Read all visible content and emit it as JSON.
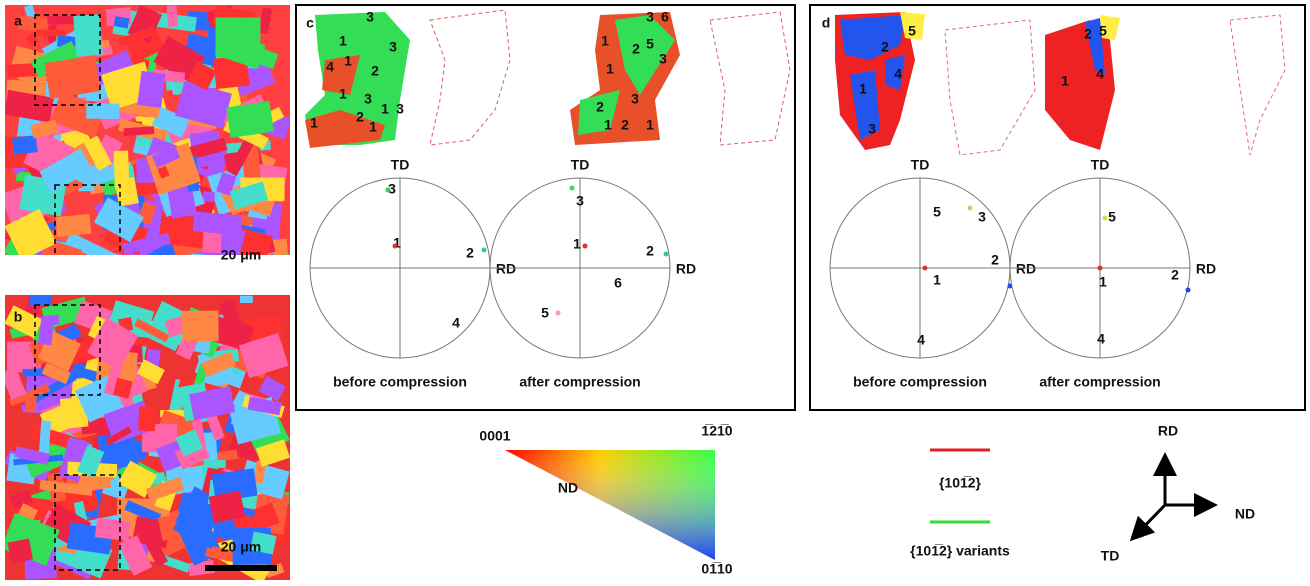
{
  "panel_a": {
    "label": "a",
    "scale": "20 μm"
  },
  "panel_b": {
    "label": "b",
    "scale": "20 μm"
  },
  "panel_c": {
    "label": "c",
    "map_labels_before": [
      "3",
      "1",
      "3",
      "4",
      "1",
      "2",
      "1",
      "3",
      "1",
      "3",
      "2",
      "1",
      "1"
    ],
    "map_labels_after": [
      "3",
      "6",
      "1",
      "2",
      "5",
      "3",
      "1",
      "3",
      "2",
      "1",
      "2",
      "1"
    ],
    "pole_before": {
      "td": "TD",
      "rd": "RD",
      "variants": [
        "1",
        "2",
        "3",
        "4"
      ],
      "caption": "before compression"
    },
    "pole_after": {
      "td": "TD",
      "rd": "RD",
      "variants": [
        "1",
        "2",
        "3",
        "5",
        "6"
      ],
      "caption": "after compression"
    }
  },
  "panel_d": {
    "label": "d",
    "map_labels_before": [
      "5",
      "2",
      "4",
      "1",
      "3"
    ],
    "map_labels_after": [
      "2",
      "5",
      "1",
      "4"
    ],
    "pole_before": {
      "td": "TD",
      "rd": "RD",
      "variants": [
        "1",
        "2",
        "3",
        "4",
        "5"
      ],
      "caption": "before compression"
    },
    "pole_after": {
      "td": "TD",
      "rd": "RD",
      "variants": [
        "1",
        "2",
        "4",
        "5"
      ],
      "caption": "after compression"
    }
  },
  "color_key": {
    "top_left": "0001",
    "top_right": "1̅21̅0",
    "bottom": "01̅10",
    "axis": "ND"
  },
  "legend": {
    "boundary": "{101̅2}",
    "variants": "{101̅2} variants"
  },
  "axes": {
    "up": "RD",
    "right": "ND",
    "down_left": "TD"
  }
}
